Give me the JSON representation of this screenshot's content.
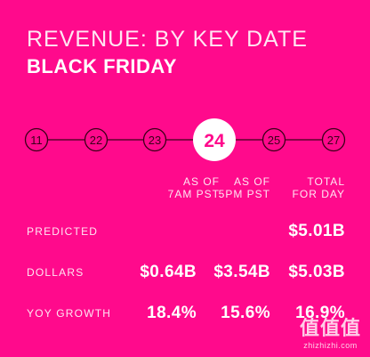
{
  "header": {
    "title": "REVENUE: BY KEY DATE",
    "subtitle": "BLACK FRIDAY"
  },
  "timeline": {
    "days": [
      "11",
      "22",
      "23",
      "24",
      "25",
      "27"
    ],
    "active_day": "24"
  },
  "columns": [
    {
      "line1": "AS OF",
      "line2": "7AM PST"
    },
    {
      "line1": "AS OF",
      "line2": "5PM PST"
    },
    {
      "line1": "TOTAL",
      "line2": "FOR DAY"
    }
  ],
  "rows": {
    "predicted": {
      "label": "PREDICTED",
      "value": "$5.01B"
    },
    "dollars": {
      "label": "DOLLARS",
      "values": [
        "$0.64B",
        "$3.54B",
        "$5.03B"
      ]
    },
    "yoy_growth": {
      "label": "YOY GROWTH",
      "values": [
        "18.4%",
        "15.6%",
        "16.9%"
      ]
    }
  },
  "watermark": {
    "glyphs": "值值值",
    "text": "zhizhizhi.com"
  },
  "colors": {
    "background": "#ff0a8c",
    "text": "#ffffff",
    "line": "#3a0018"
  }
}
